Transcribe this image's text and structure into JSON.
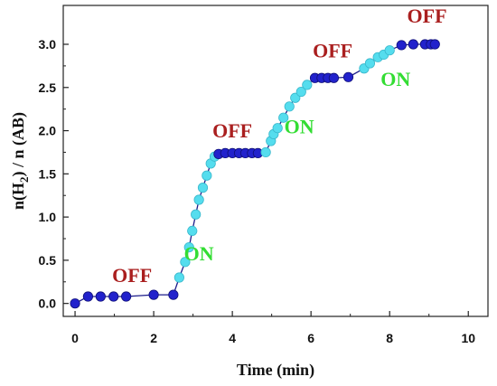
{
  "chart_data": {
    "type": "scatter",
    "xlabel": "Time (min)",
    "ylabel_parts": {
      "pre": "n(H",
      "sub": "2",
      "post": ") / n (AB)"
    },
    "xlim": [
      -0.3,
      10.5
    ],
    "ylim": [
      -0.15,
      3.45
    ],
    "x_ticks": [
      0,
      2,
      4,
      6,
      8,
      10
    ],
    "y_ticks": [
      0.0,
      0.5,
      1.0,
      1.5,
      2.0,
      2.5,
      3.0
    ],
    "x_tick_labels": [
      "0",
      "2",
      "4",
      "6",
      "8",
      "10"
    ],
    "y_tick_labels": [
      "0.0",
      "0.5",
      "1.0",
      "1.5",
      "2.0",
      "2.5",
      "3.0"
    ],
    "colors": {
      "off": "#2222cc",
      "on": "#55ddee",
      "off_text": "#aa1f1f",
      "on_text": "#33dd33"
    },
    "segments": [
      {
        "state": "OFF",
        "points": [
          [
            0.0,
            0.0
          ],
          [
            0.33,
            0.08
          ],
          [
            0.65,
            0.08
          ],
          [
            0.98,
            0.08
          ],
          [
            1.3,
            0.08
          ],
          [
            2.0,
            0.1
          ],
          [
            2.5,
            0.1
          ]
        ]
      },
      {
        "state": "ON",
        "points": [
          [
            2.65,
            0.3
          ],
          [
            2.8,
            0.48
          ],
          [
            2.9,
            0.65
          ],
          [
            2.98,
            0.84
          ],
          [
            3.07,
            1.03
          ],
          [
            3.15,
            1.2
          ],
          [
            3.25,
            1.34
          ],
          [
            3.35,
            1.48
          ],
          [
            3.45,
            1.62
          ],
          [
            3.55,
            1.7
          ]
        ]
      },
      {
        "state": "OFF",
        "points": [
          [
            3.65,
            1.73
          ],
          [
            3.82,
            1.74
          ],
          [
            4.0,
            1.74
          ],
          [
            4.17,
            1.74
          ],
          [
            4.33,
            1.74
          ],
          [
            4.5,
            1.74
          ],
          [
            4.65,
            1.74
          ]
        ]
      },
      {
        "state": "ON",
        "points": [
          [
            4.85,
            1.75
          ],
          [
            4.98,
            1.88
          ],
          [
            5.05,
            1.96
          ],
          [
            5.15,
            2.03
          ],
          [
            5.3,
            2.15
          ],
          [
            5.45,
            2.28
          ],
          [
            5.6,
            2.38
          ],
          [
            5.75,
            2.45
          ],
          [
            5.9,
            2.53
          ]
        ]
      },
      {
        "state": "OFF",
        "points": [
          [
            6.1,
            2.61
          ],
          [
            6.27,
            2.61
          ],
          [
            6.43,
            2.61
          ],
          [
            6.58,
            2.61
          ],
          [
            6.95,
            2.62
          ]
        ]
      },
      {
        "state": "ON",
        "points": [
          [
            7.35,
            2.72
          ],
          [
            7.5,
            2.78
          ],
          [
            7.7,
            2.85
          ],
          [
            7.85,
            2.88
          ],
          [
            8.0,
            2.93
          ]
        ]
      },
      {
        "state": "OFF",
        "points": [
          [
            8.3,
            2.99
          ],
          [
            8.6,
            3.0
          ],
          [
            8.9,
            3.0
          ],
          [
            9.05,
            3.0
          ],
          [
            9.15,
            3.0
          ]
        ]
      }
    ],
    "annotations": [
      {
        "text": "OFF",
        "state": "OFF",
        "x": 1.45,
        "y": 0.25
      },
      {
        "text": "ON",
        "state": "ON",
        "x": 3.15,
        "y": 0.5
      },
      {
        "text": "OFF",
        "state": "OFF",
        "x": 4.0,
        "y": 1.92
      },
      {
        "text": "ON",
        "state": "ON",
        "x": 5.7,
        "y": 1.97
      },
      {
        "text": "OFF",
        "state": "OFF",
        "x": 6.55,
        "y": 2.85
      },
      {
        "text": "ON",
        "state": "ON",
        "x": 8.15,
        "y": 2.52
      },
      {
        "text": "OFF",
        "state": "OFF",
        "x": 8.95,
        "y": 3.25
      }
    ]
  }
}
